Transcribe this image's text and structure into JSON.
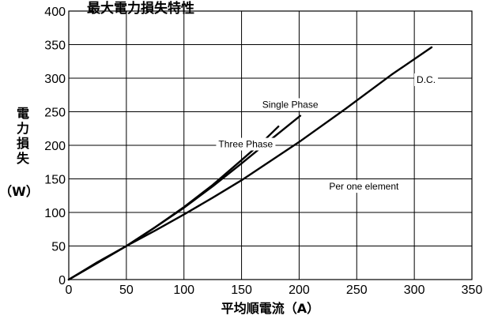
{
  "chart_data": {
    "type": "line",
    "title": "最大電力損失特性",
    "xlabel": "平均順電流（A）",
    "ylabel_chars": [
      "電",
      "力",
      "損",
      "失"
    ],
    "ylabel_unit": "（W）",
    "xlim": [
      0,
      350
    ],
    "ylim": [
      0,
      400
    ],
    "x_ticks": [
      0,
      50,
      100,
      150,
      200,
      250,
      300,
      350
    ],
    "y_ticks": [
      0,
      50,
      100,
      150,
      200,
      250,
      300,
      350,
      400
    ],
    "grid": true,
    "series": [
      {
        "name": "Three Phase",
        "points": [
          [
            0,
            0
          ],
          [
            25,
            25
          ],
          [
            50,
            50
          ],
          [
            75,
            78
          ],
          [
            100,
            108
          ],
          [
            125,
            141
          ],
          [
            150,
            178
          ],
          [
            170,
            208
          ],
          [
            182,
            228
          ]
        ]
      },
      {
        "name": "Single Phase",
        "points": [
          [
            0,
            0
          ],
          [
            25,
            25
          ],
          [
            50,
            50
          ],
          [
            75,
            78
          ],
          [
            100,
            107
          ],
          [
            125,
            139
          ],
          [
            150,
            173
          ],
          [
            175,
            208
          ],
          [
            201,
            244
          ]
        ]
      },
      {
        "name": "D.C.",
        "points": [
          [
            0,
            0
          ],
          [
            25,
            26
          ],
          [
            50,
            50
          ],
          [
            75,
            73
          ],
          [
            100,
            97
          ],
          [
            125,
            122
          ],
          [
            150,
            148
          ],
          [
            200,
            205
          ],
          [
            240,
            254
          ],
          [
            280,
            305
          ],
          [
            315,
            346
          ]
        ]
      }
    ],
    "annotations": [
      {
        "text": "Three Phase",
        "x": 130,
        "y": 197
      },
      {
        "text": "Single Phase",
        "x": 168,
        "y": 256
      },
      {
        "text": "D.C.",
        "x": 302,
        "y": 293
      },
      {
        "text": "Per one element",
        "x": 226,
        "y": 134
      }
    ]
  }
}
